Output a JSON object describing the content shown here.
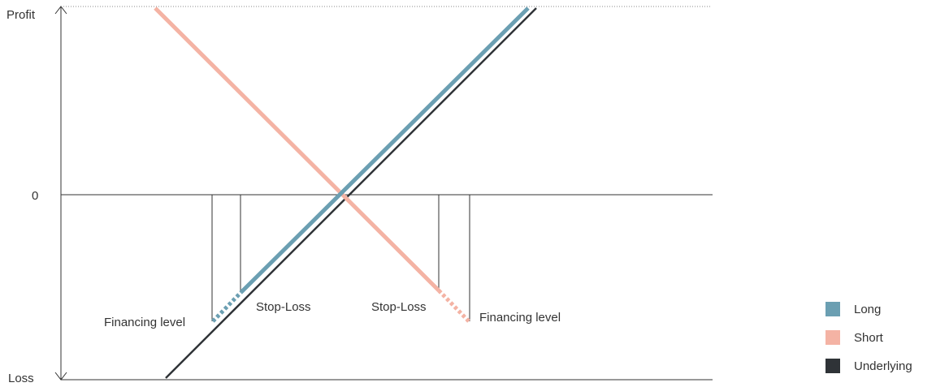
{
  "axis": {
    "profit_label": "Profit",
    "zero_label": "0",
    "loss_label": "Loss"
  },
  "annotations": {
    "long_financing": "Financing level",
    "long_stop_loss": "Stop-Loss",
    "short_stop_loss": "Stop-Loss",
    "short_financing": "Financing level"
  },
  "legend": [
    {
      "label": "Long",
      "color": "#6b9fb2"
    },
    {
      "label": "Short",
      "color": "#f4b3a4"
    },
    {
      "label": "Underlying",
      "color": "#2f3337"
    }
  ]
}
